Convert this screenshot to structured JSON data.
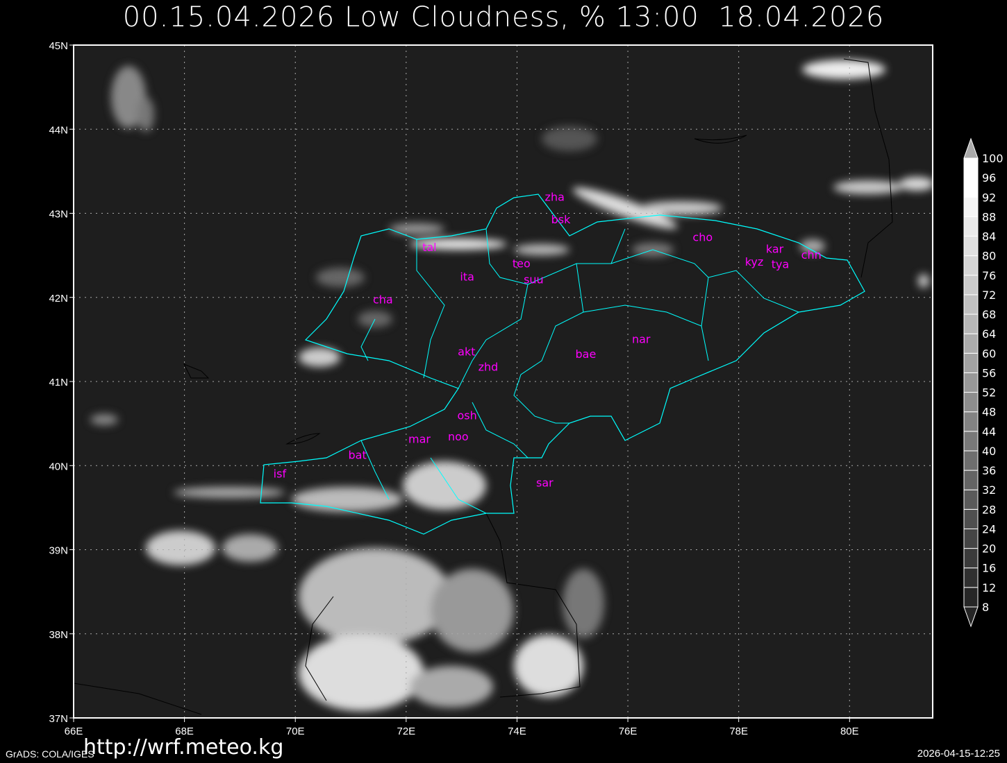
{
  "title": "00.15.04.2026 Low Cloudness, % 13:00  18.04.2026",
  "map": {
    "variable": "Low Cloudness, %",
    "lon_range": [
      66,
      81.5
    ],
    "lat_range": [
      37,
      45
    ],
    "lon_ticks": [
      "66E",
      "68E",
      "70E",
      "72E",
      "74E",
      "76E",
      "78E",
      "80E"
    ],
    "lat_ticks": [
      "37N",
      "38N",
      "39N",
      "40N",
      "41N",
      "42N",
      "43N",
      "44N",
      "45N"
    ],
    "grid": true,
    "border_color": "#00ffff",
    "label_color": "#ff00ff",
    "stations": [
      {
        "name": "zha",
        "lon": 74.68,
        "lat": 43.19
      },
      {
        "name": "bsk",
        "lon": 74.79,
        "lat": 42.92
      },
      {
        "name": "tal",
        "lon": 72.42,
        "lat": 42.59
      },
      {
        "name": "teo",
        "lon": 74.08,
        "lat": 42.4
      },
      {
        "name": "ita",
        "lon": 73.1,
        "lat": 42.24
      },
      {
        "name": "suu",
        "lon": 74.3,
        "lat": 42.21
      },
      {
        "name": "cho",
        "lon": 77.35,
        "lat": 42.71
      },
      {
        "name": "kar",
        "lon": 78.65,
        "lat": 42.57
      },
      {
        "name": "kyz",
        "lon": 78.28,
        "lat": 42.42
      },
      {
        "name": "tya",
        "lon": 78.75,
        "lat": 42.39
      },
      {
        "name": "chn",
        "lon": 79.31,
        "lat": 42.5
      },
      {
        "name": "cha",
        "lon": 71.58,
        "lat": 41.97
      },
      {
        "name": "akt",
        "lon": 73.09,
        "lat": 41.35
      },
      {
        "name": "zhd",
        "lon": 73.48,
        "lat": 41.17
      },
      {
        "name": "bae",
        "lon": 75.24,
        "lat": 41.32
      },
      {
        "name": "nar",
        "lon": 76.24,
        "lat": 41.5
      },
      {
        "name": "osh",
        "lon": 73.1,
        "lat": 40.59
      },
      {
        "name": "noo",
        "lon": 72.94,
        "lat": 40.34
      },
      {
        "name": "mar",
        "lon": 72.24,
        "lat": 40.31
      },
      {
        "name": "bat",
        "lon": 71.12,
        "lat": 40.12
      },
      {
        "name": "isf",
        "lon": 69.72,
        "lat": 39.9
      },
      {
        "name": "sar",
        "lon": 74.5,
        "lat": 39.79
      }
    ]
  },
  "colorbar": {
    "levels": [
      "8",
      "12",
      "16",
      "20",
      "24",
      "28",
      "32",
      "36",
      "40",
      "44",
      "48",
      "52",
      "56",
      "60",
      "64",
      "68",
      "72",
      "76",
      "80",
      "84",
      "88",
      "92",
      "96",
      "100"
    ]
  },
  "footer": {
    "url": "http://wrf.meteo.kg",
    "credit": "GrADS: COLA/IGES",
    "timestamp": "2026-04-15-12:25"
  }
}
